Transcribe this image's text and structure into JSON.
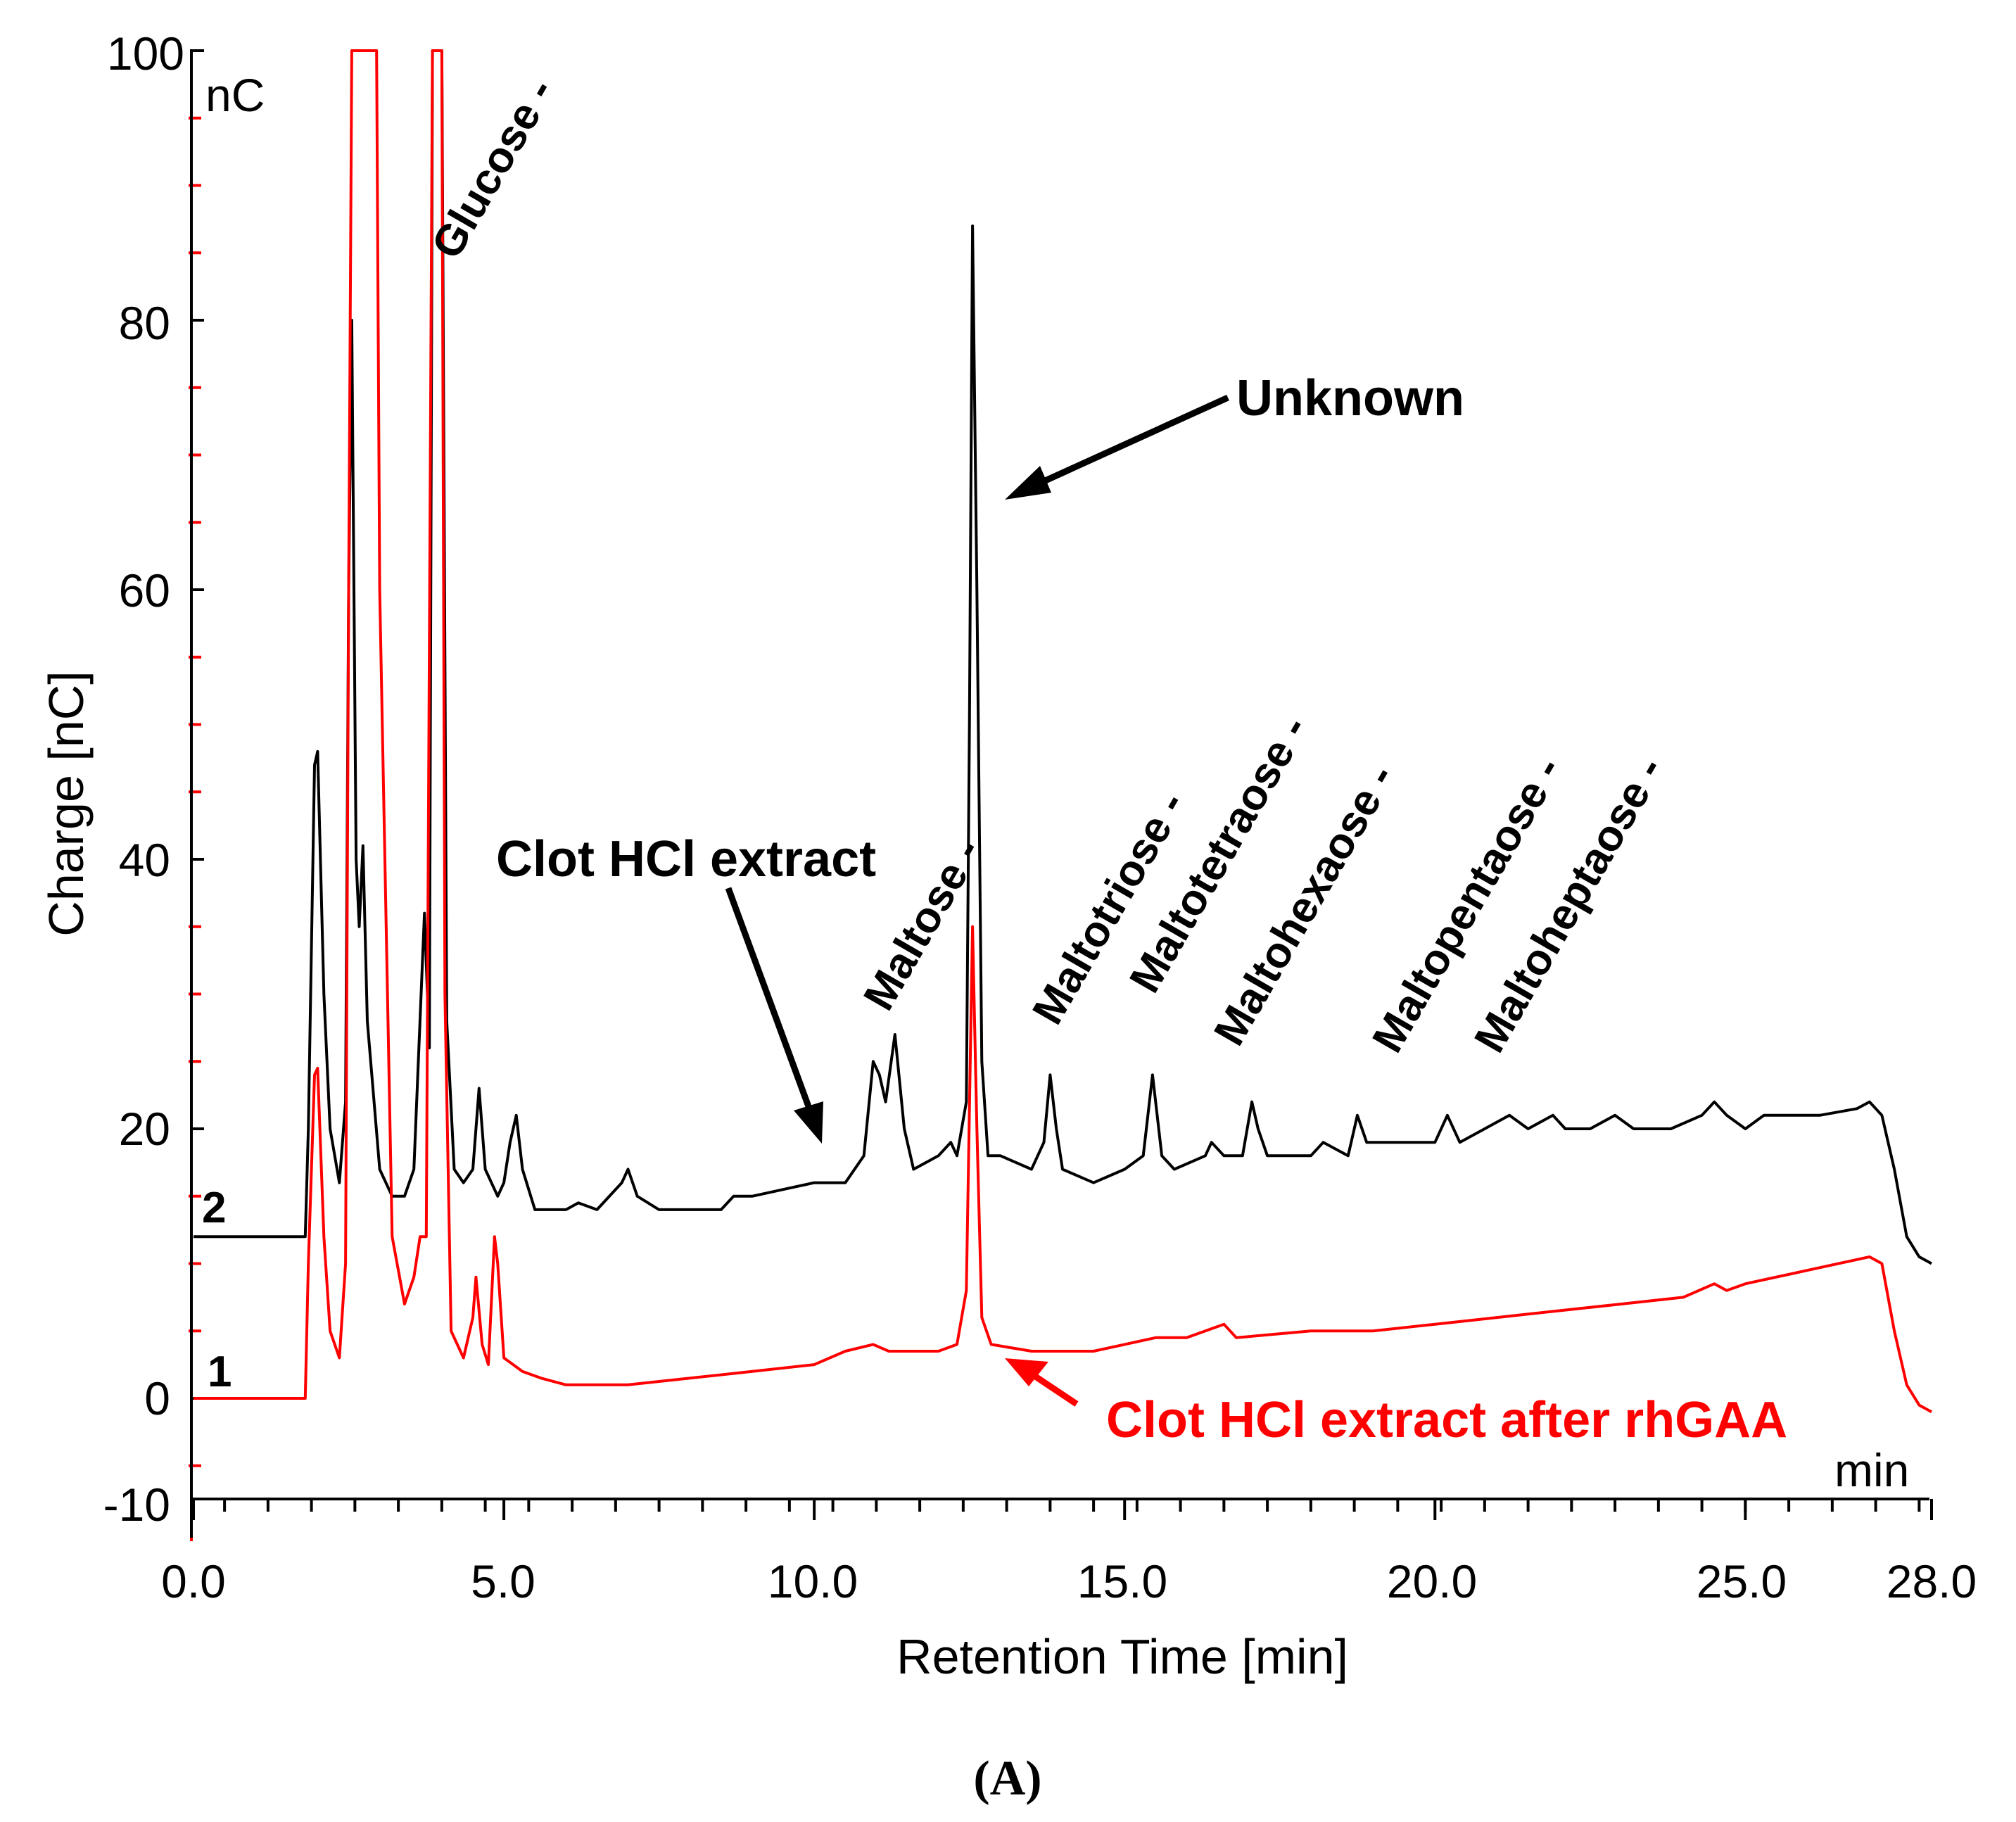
{
  "chart_data": {
    "type": "line",
    "title": "",
    "xlabel": "Retention Time [min]",
    "ylabel": "Charge [nC]",
    "x_unit": "min",
    "y_unit": "nC",
    "xlim": [
      0,
      28
    ],
    "ylim": [
      -10,
      100
    ],
    "x_ticks": [
      {
        "value": 0,
        "label": "0.0"
      },
      {
        "value": 5,
        "label": "5.0"
      },
      {
        "value": 10,
        "label": "10.0"
      },
      {
        "value": 15,
        "label": "15.0"
      },
      {
        "value": 20,
        "label": "20.0"
      },
      {
        "value": 25,
        "label": "25.0"
      },
      {
        "value": 28,
        "label": "28.0"
      }
    ],
    "y_ticks": [
      {
        "value": 100,
        "label": "100"
      },
      {
        "value": 80,
        "label": "80"
      },
      {
        "value": 60,
        "label": "60"
      },
      {
        "value": 40,
        "label": "40"
      },
      {
        "value": 20,
        "label": "20"
      },
      {
        "value": 0,
        "label": "0"
      },
      {
        "value": -10,
        "label": "-10"
      }
    ],
    "series": [
      {
        "name": "Clot HCl extract",
        "trace_number": "2",
        "color": "#000000",
        "points": [
          [
            0,
            12
          ],
          [
            1.8,
            12
          ],
          [
            1.85,
            20
          ],
          [
            1.95,
            47
          ],
          [
            2.0,
            48
          ],
          [
            2.1,
            30
          ],
          [
            2.2,
            20
          ],
          [
            2.35,
            16
          ],
          [
            2.45,
            22
          ],
          [
            2.5,
            60
          ],
          [
            2.55,
            80
          ],
          [
            2.62,
            40
          ],
          [
            2.67,
            35
          ],
          [
            2.73,
            41
          ],
          [
            2.8,
            28
          ],
          [
            3.0,
            17
          ],
          [
            3.2,
            15
          ],
          [
            3.4,
            15
          ],
          [
            3.55,
            17
          ],
          [
            3.72,
            36
          ],
          [
            3.8,
            26
          ],
          [
            3.85,
            100
          ],
          [
            3.95,
            100
          ],
          [
            4.0,
            100
          ],
          [
            4.08,
            28
          ],
          [
            4.2,
            17
          ],
          [
            4.35,
            16
          ],
          [
            4.5,
            17
          ],
          [
            4.6,
            23
          ],
          [
            4.7,
            17
          ],
          [
            4.9,
            15
          ],
          [
            5.0,
            16
          ],
          [
            5.1,
            19
          ],
          [
            5.2,
            21
          ],
          [
            5.3,
            17
          ],
          [
            5.5,
            14
          ],
          [
            6.0,
            14
          ],
          [
            6.2,
            14.5
          ],
          [
            6.5,
            14
          ],
          [
            6.9,
            16
          ],
          [
            7.0,
            17
          ],
          [
            7.15,
            15
          ],
          [
            7.5,
            14
          ],
          [
            8.5,
            14
          ],
          [
            8.7,
            15
          ],
          [
            9.0,
            15
          ],
          [
            9.5,
            15.5
          ],
          [
            10.0,
            16
          ],
          [
            10.5,
            16
          ],
          [
            10.8,
            18
          ],
          [
            10.95,
            25
          ],
          [
            11.05,
            24
          ],
          [
            11.15,
            22
          ],
          [
            11.3,
            27
          ],
          [
            11.45,
            20
          ],
          [
            11.6,
            17
          ],
          [
            12.0,
            18
          ],
          [
            12.2,
            19
          ],
          [
            12.3,
            18
          ],
          [
            12.45,
            22
          ],
          [
            12.5,
            50
          ],
          [
            12.55,
            87
          ],
          [
            12.62,
            60
          ],
          [
            12.7,
            25
          ],
          [
            12.8,
            18
          ],
          [
            13.0,
            18
          ],
          [
            13.5,
            17
          ],
          [
            13.7,
            19
          ],
          [
            13.8,
            24
          ],
          [
            13.9,
            20
          ],
          [
            14.0,
            17
          ],
          [
            14.5,
            16
          ],
          [
            15.0,
            17
          ],
          [
            15.3,
            18
          ],
          [
            15.45,
            24
          ],
          [
            15.6,
            18
          ],
          [
            15.8,
            17
          ],
          [
            16.3,
            18
          ],
          [
            16.4,
            19
          ],
          [
            16.6,
            18
          ],
          [
            16.9,
            18
          ],
          [
            17.05,
            22
          ],
          [
            17.15,
            20
          ],
          [
            17.3,
            18
          ],
          [
            18.0,
            18
          ],
          [
            18.2,
            19
          ],
          [
            18.6,
            18
          ],
          [
            18.75,
            21
          ],
          [
            18.9,
            19
          ],
          [
            19.5,
            19
          ],
          [
            20.0,
            19
          ],
          [
            20.2,
            21
          ],
          [
            20.4,
            19
          ],
          [
            20.8,
            20
          ],
          [
            21.2,
            21
          ],
          [
            21.5,
            20
          ],
          [
            21.9,
            21
          ],
          [
            22.1,
            20
          ],
          [
            22.5,
            20
          ],
          [
            22.9,
            21
          ],
          [
            23.2,
            20
          ],
          [
            23.8,
            20
          ],
          [
            24.3,
            21
          ],
          [
            24.5,
            22
          ],
          [
            24.7,
            21
          ],
          [
            25.0,
            20
          ],
          [
            25.3,
            21
          ],
          [
            25.7,
            21
          ],
          [
            26.2,
            21
          ],
          [
            26.8,
            21.5
          ],
          [
            27.0,
            22
          ],
          [
            27.2,
            21
          ],
          [
            27.4,
            17
          ],
          [
            27.6,
            12
          ],
          [
            27.8,
            10.5
          ],
          [
            28.0,
            10
          ]
        ]
      },
      {
        "name": "Clot HCl extract after rhGAA",
        "trace_number": "1",
        "color": "#ff0000",
        "points": [
          [
            0,
            0
          ],
          [
            1.8,
            0
          ],
          [
            1.85,
            10
          ],
          [
            1.95,
            24
          ],
          [
            2.0,
            24.5
          ],
          [
            2.1,
            12
          ],
          [
            2.2,
            5
          ],
          [
            2.35,
            3
          ],
          [
            2.45,
            10
          ],
          [
            2.5,
            60
          ],
          [
            2.55,
            100
          ],
          [
            2.85,
            100
          ],
          [
            2.95,
            100
          ],
          [
            3.0,
            60
          ],
          [
            3.2,
            12
          ],
          [
            3.4,
            7
          ],
          [
            3.55,
            9
          ],
          [
            3.65,
            12
          ],
          [
            3.75,
            12
          ],
          [
            3.85,
            100
          ],
          [
            4.0,
            100
          ],
          [
            4.05,
            30
          ],
          [
            4.15,
            5
          ],
          [
            4.35,
            3
          ],
          [
            4.5,
            6
          ],
          [
            4.55,
            9
          ],
          [
            4.65,
            4
          ],
          [
            4.75,
            2.5
          ],
          [
            4.85,
            12
          ],
          [
            4.9,
            10
          ],
          [
            5.0,
            3
          ],
          [
            5.3,
            2
          ],
          [
            5.6,
            1.5
          ],
          [
            6.0,
            1
          ],
          [
            7.0,
            1
          ],
          [
            8.0,
            1.5
          ],
          [
            9.0,
            2
          ],
          [
            10.0,
            2.5
          ],
          [
            10.5,
            3.5
          ],
          [
            10.95,
            4
          ],
          [
            11.2,
            3.5
          ],
          [
            11.6,
            3.5
          ],
          [
            12.0,
            3.5
          ],
          [
            12.3,
            4
          ],
          [
            12.45,
            8
          ],
          [
            12.55,
            35
          ],
          [
            12.62,
            20
          ],
          [
            12.7,
            6
          ],
          [
            12.85,
            4
          ],
          [
            13.5,
            3.5
          ],
          [
            14.5,
            3.5
          ],
          [
            15.0,
            4
          ],
          [
            15.5,
            4.5
          ],
          [
            16.0,
            4.5
          ],
          [
            16.6,
            5.5
          ],
          [
            16.8,
            4.5
          ],
          [
            18.0,
            5
          ],
          [
            19.0,
            5
          ],
          [
            20.0,
            5.5
          ],
          [
            21.0,
            6
          ],
          [
            22.0,
            6.5
          ],
          [
            23.0,
            7
          ],
          [
            24.0,
            7.5
          ],
          [
            24.5,
            8.5
          ],
          [
            24.7,
            8
          ],
          [
            25.0,
            8.5
          ],
          [
            26.0,
            9.5
          ],
          [
            27.0,
            10.5
          ],
          [
            27.2,
            10
          ],
          [
            27.4,
            5
          ],
          [
            27.6,
            1
          ],
          [
            27.8,
            -0.5
          ],
          [
            28.0,
            -1
          ]
        ]
      }
    ],
    "peak_labels": [
      "Glucose -",
      "Maltose -",
      "Maltotriose -",
      "Maltotetraose -",
      "Maltohexaose -",
      "Maltopentaose -",
      "Maltoheptaose -"
    ],
    "annotations": {
      "unknown": "Unknown",
      "clot_extract": "Clot HCl extract",
      "clot_extract_after": "Clot HCl extract after rhGAA"
    },
    "y_unit_label": "nC",
    "x_unit_label": "min",
    "trace_labels": [
      "2",
      "1"
    ],
    "caption_open": "(",
    "caption_letter": "A",
    "caption_close": ")"
  }
}
